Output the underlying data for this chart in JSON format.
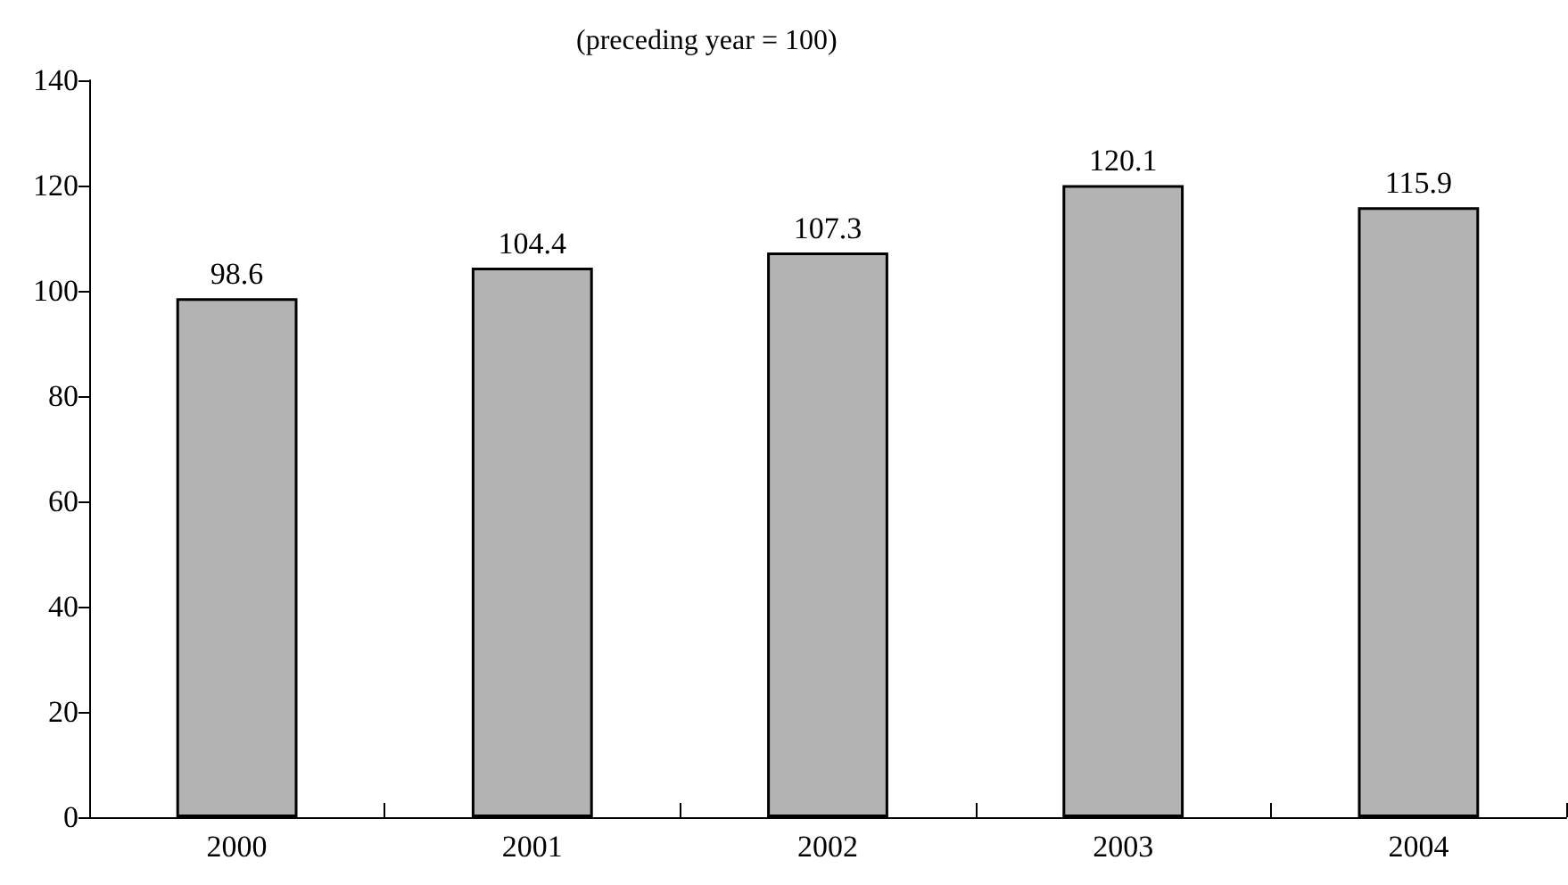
{
  "chart_data": {
    "type": "bar",
    "title": "(preceding year = 100)",
    "categories": [
      "2000",
      "2001",
      "2002",
      "2003",
      "2004"
    ],
    "values": [
      98.6,
      104.4,
      107.3,
      120.1,
      115.9
    ],
    "color": "#b3b3b3",
    "ylim": [
      0,
      140
    ],
    "yticks": [
      0,
      20,
      40,
      60,
      80,
      100,
      120,
      140
    ],
    "grid": false,
    "data_labels": true
  }
}
